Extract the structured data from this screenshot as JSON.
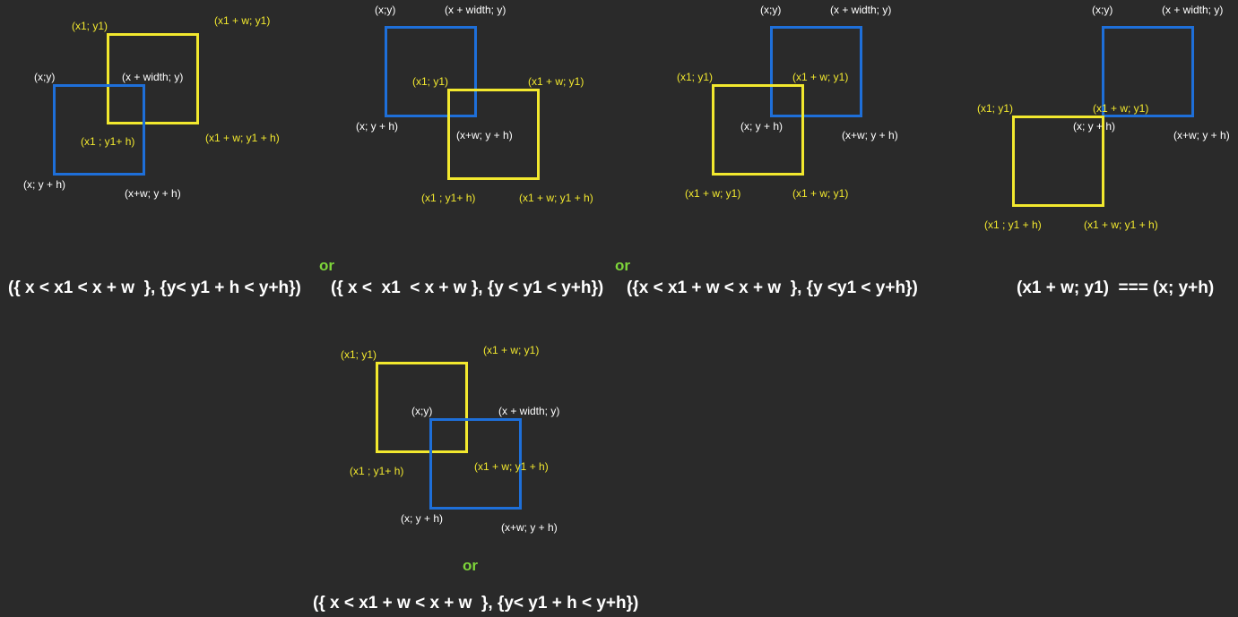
{
  "colors": {
    "background": "#2a2a2a",
    "blue_rect": "#1e6fd9",
    "yellow_rect": "#f2e82e",
    "or_text": "#7ed63a",
    "white_text": "#ffffff"
  },
  "diagrams": [
    {
      "labels": {
        "yellow_top_left": "(x1; y1)",
        "yellow_top_right": "(x1 + w; y1)",
        "blue_top_left": "(x;y)",
        "blue_top_right": "(x + width; y)",
        "yellow_bottom_left": "(x1 ; y1+ h)",
        "yellow_bottom_right": "(x1 + w; y1 + h)",
        "blue_bottom_left": "(x; y + h)",
        "blue_bottom_right": "(x+w; y + h)"
      }
    },
    {
      "labels": {
        "blue_top_left": "(x;y)",
        "blue_top_right": "(x + width; y)",
        "yellow_top_left": "(x1; y1)",
        "yellow_top_right": "(x1 + w; y1)",
        "blue_bottom_left": "(x; y + h)",
        "blue_bottom_right": "(x+w; y + h)",
        "yellow_bottom_left": "(x1 ; y1+ h)",
        "yellow_bottom_right": "(x1 + w; y1 + h)"
      }
    },
    {
      "labels": {
        "blue_top_left": "(x;y)",
        "blue_top_right": "(x + width; y)",
        "yellow_top_left": "(x1; y1)",
        "yellow_top_right": "(x1 + w; y1)",
        "blue_bottom_left": "(x; y + h)",
        "blue_bottom_right": "(x+w; y + h)",
        "yellow_bottom_left": "(x1 + w; y1)",
        "yellow_bottom_right": "(x1 + w; y1)"
      }
    },
    {
      "labels": {
        "blue_top_left": "(x;y)",
        "blue_top_right": "(x + width; y)",
        "yellow_top_left": "(x1; y1)",
        "yellow_top_right": "(x1 + w; y1)",
        "blue_bottom_left": "(x; y + h)",
        "blue_bottom_right": "(x+w; y + h)",
        "yellow_bottom_left": "(x1 ; y1 + h)",
        "yellow_bottom_right": "(x1 + w; y1 + h)"
      }
    },
    {
      "labels": {
        "yellow_top_left": "(x1; y1)",
        "yellow_top_right": "(x1 + w; y1)",
        "blue_top_left": "(x;y)",
        "blue_top_right": "(x + width; y)",
        "yellow_bottom_left": "(x1 ; y1+ h)",
        "yellow_bottom_right": "(x1 + w; y1 + h)",
        "blue_bottom_left": "(x; y + h)",
        "blue_bottom_right": "(x+w; y + h)"
      }
    }
  ],
  "separators": {
    "or_1": "or",
    "or_2": "or",
    "or_3": "or"
  },
  "formulas": {
    "f1": "({ x < x1 < x + w  }, {y< y1 + h < y+h})",
    "f2": "({ x <  x1  < x + w }, {y < y1 < y+h})",
    "f3": "({x < x1 + w < x + w  }, {y <y1 < y+h})",
    "f4": "(x1 + w; y1)  === (x; y+h)",
    "f5": "({ x < x1 + w < x + w  }, {y< y1 + h < y+h})"
  }
}
